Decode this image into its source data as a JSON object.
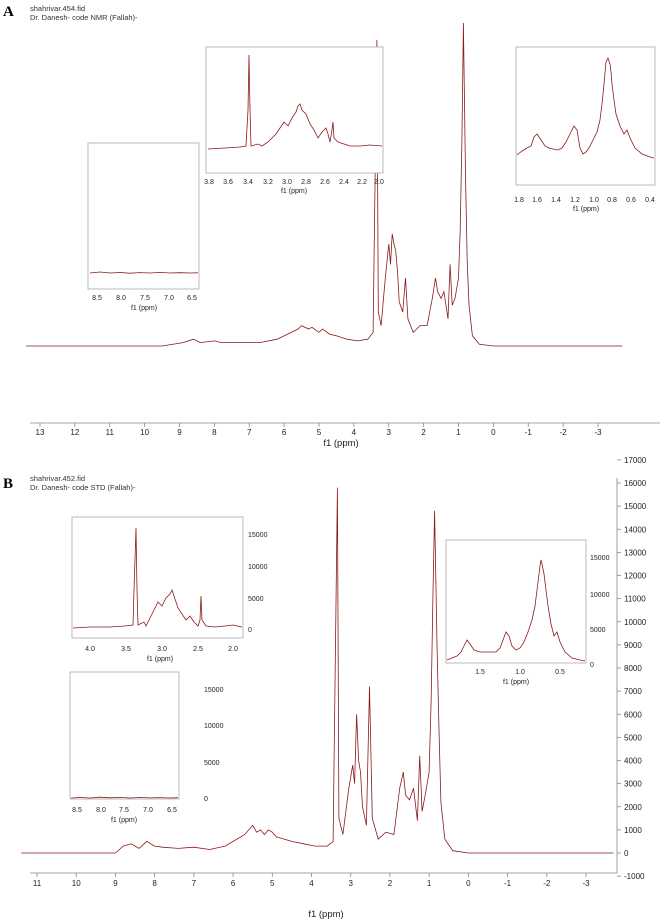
{
  "colors": {
    "trace": "#8b1a1a",
    "axis": "#888888",
    "inset_border": "#aaaaaa"
  },
  "panels": [
    {
      "letter": "A",
      "file": "shahrivar.454.fid",
      "title": "Dr. Danesh- code NMR (Fallah)-",
      "xlabel": "f1 (ppm)",
      "xticks": [
        "13",
        "12",
        "11",
        "10",
        "9",
        "8",
        "7",
        "6",
        "5",
        "4",
        "3",
        "2",
        "1",
        "0",
        "-1",
        "-2",
        "-3"
      ],
      "insets": [
        {
          "xlabel": "f1 (ppm)",
          "xticks": [
            "8.5",
            "8.0",
            "7.5",
            "7.0",
            "6.5"
          ]
        },
        {
          "xlabel": "f1 (ppm)",
          "xticks": [
            "3.8",
            "3.6",
            "3.4",
            "3.2",
            "3.0",
            "2.8",
            "2.6",
            "2.4",
            "2.2",
            "2.0"
          ]
        },
        {
          "xlabel": "f1 (ppm)",
          "xticks": [
            "1.8",
            "1.6",
            "1.4",
            "1.2",
            "1.0",
            "0.8",
            "0.6",
            "0.4"
          ]
        }
      ]
    },
    {
      "letter": "B",
      "file": "shahrivar.452.fid",
      "title": "Dr. Danesh- code STD (Fallah)-",
      "xlabel": "f1 (ppm)",
      "xticks": [
        "11",
        "10",
        "9",
        "8",
        "7",
        "6",
        "5",
        "4",
        "3",
        "2",
        "1",
        "0",
        "-1",
        "-2",
        "-3"
      ],
      "yticks": [
        "17000",
        "16000",
        "15000",
        "14000",
        "13000",
        "12000",
        "11000",
        "10000",
        "9000",
        "8000",
        "7000",
        "6000",
        "5000",
        "4000",
        "3000",
        "2000",
        "1000",
        "0",
        "-1000"
      ],
      "insets": [
        {
          "xlabel": "f1 (ppm)",
          "xticks": [
            "4.0",
            "3.5",
            "3.0",
            "2.5",
            "2.0"
          ],
          "yticks": [
            "15000",
            "10000",
            "5000",
            "0"
          ]
        },
        {
          "xlabel": "f1 (ppm)",
          "xticks": [
            "1.5",
            "1.0",
            "0.5"
          ],
          "yticks": [
            "15000",
            "10000",
            "5000",
            "0"
          ]
        },
        {
          "xlabel": "f1 (ppm)",
          "xticks": [
            "8.5",
            "8.0",
            "7.5",
            "7.0",
            "6.5"
          ],
          "yticks": [
            "15000",
            "10000",
            "5000",
            "0"
          ]
        }
      ]
    }
  ],
  "chart_data": [
    {
      "type": "line",
      "title": "Dr. Danesh- code NMR (Fallah)-",
      "xlabel": "f1 (ppm)",
      "xlim": [
        13.4,
        -3.7
      ],
      "x_reversed": true,
      "ylim": [
        -0.1,
        1.0
      ],
      "series": [
        {
          "x": [
            13.4,
            9.5,
            8.9,
            8.6,
            8.4,
            8.0,
            7.8,
            7.4,
            7.0,
            6.7,
            6.2,
            5.6,
            5.5,
            5.3,
            5.2,
            5.0,
            4.9,
            4.7,
            4.5,
            4.2,
            3.9,
            3.6,
            3.45,
            3.34,
            3.3,
            3.22,
            3.1,
            3.0,
            2.95,
            2.9,
            2.85,
            2.8,
            2.75,
            2.7,
            2.6,
            2.52,
            2.45,
            2.3,
            2.1,
            1.9,
            1.75,
            1.66,
            1.6,
            1.5,
            1.42,
            1.3,
            1.24,
            1.18,
            1.1,
            1.0,
            0.95,
            0.9,
            0.86,
            0.8,
            0.75,
            0.7,
            0.6,
            0.4,
            0.0,
            -1.0,
            -3.7
          ],
          "y": [
            0.0,
            0.0,
            0.01,
            0.02,
            0.01,
            0.015,
            0.01,
            0.01,
            0.01,
            0.01,
            0.02,
            0.05,
            0.06,
            0.05,
            0.055,
            0.04,
            0.05,
            0.035,
            0.03,
            0.02,
            0.015,
            0.02,
            0.04,
            0.9,
            0.1,
            0.06,
            0.2,
            0.3,
            0.24,
            0.33,
            0.3,
            0.28,
            0.22,
            0.13,
            0.1,
            0.2,
            0.08,
            0.04,
            0.06,
            0.06,
            0.14,
            0.2,
            0.16,
            0.14,
            0.16,
            0.08,
            0.24,
            0.12,
            0.14,
            0.2,
            0.34,
            0.62,
            0.95,
            0.5,
            0.25,
            0.12,
            0.03,
            0.005,
            0.0,
            0.0,
            0.0
          ]
        }
      ]
    },
    {
      "type": "line",
      "title": "Dr. Danesh- code STD (Fallah)-",
      "xlabel": "f1 (ppm)",
      "xlim": [
        11.4,
        -3.7
      ],
      "x_reversed": true,
      "ylim": [
        -1500,
        17300
      ],
      "series": [
        {
          "x": [
            11.4,
            9.0,
            8.8,
            8.6,
            8.4,
            8.2,
            8.0,
            7.8,
            7.4,
            7.0,
            6.6,
            6.2,
            5.7,
            5.5,
            5.4,
            5.3,
            5.2,
            5.1,
            5.0,
            4.9,
            4.7,
            4.5,
            4.2,
            3.9,
            3.6,
            3.45,
            3.34,
            3.3,
            3.2,
            3.05,
            2.95,
            2.9,
            2.85,
            2.8,
            2.75,
            2.7,
            2.6,
            2.52,
            2.45,
            2.3,
            2.1,
            1.9,
            1.75,
            1.66,
            1.6,
            1.5,
            1.4,
            1.3,
            1.24,
            1.18,
            1.1,
            1.0,
            0.95,
            0.9,
            0.86,
            0.8,
            0.75,
            0.7,
            0.6,
            0.4,
            0.0,
            -1.0,
            -3.7
          ],
          "y": [
            0,
            0,
            300,
            400,
            200,
            500,
            300,
            250,
            200,
            250,
            150,
            300,
            800,
            1200,
            900,
            1000,
            800,
            1000,
            900,
            700,
            600,
            500,
            400,
            300,
            300,
            500,
            15800,
            1500,
            800,
            2800,
            3800,
            3000,
            6000,
            4000,
            3500,
            2000,
            1200,
            7200,
            1500,
            600,
            900,
            800,
            2800,
            3500,
            2500,
            2300,
            2800,
            1400,
            4200,
            1800,
            2500,
            3500,
            6500,
            11500,
            14800,
            9000,
            5500,
            2200,
            600,
            100,
            0,
            0,
            0
          ]
        }
      ]
    }
  ]
}
